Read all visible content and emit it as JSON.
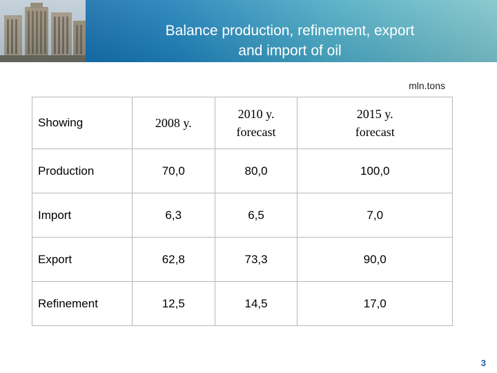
{
  "slide": {
    "title_line1": "Balance production, refinement, export",
    "title_line2": "and import of oil",
    "unit": "mln.tons",
    "page_number": "3"
  },
  "colors": {
    "header_dark": "#0d5fa0",
    "header_light": "#7fc4c9",
    "title_text": "#ffffff",
    "page_number": "#1f5fa8",
    "table_border": "#b7b7b7"
  },
  "table": {
    "headers": [
      {
        "line1": "Showing",
        "line2": ""
      },
      {
        "line1": "2008 y.",
        "line2": ""
      },
      {
        "line1": "2010 y.",
        "line2": "forecast"
      },
      {
        "line1": "2015 y.",
        "line2": "forecast"
      }
    ],
    "rows": [
      {
        "label": "Production",
        "values": [
          "70,0",
          "80,0",
          "100,0"
        ]
      },
      {
        "label": "Import",
        "values": [
          "6,3",
          "6,5",
          "7,0"
        ]
      },
      {
        "label": "Export",
        "values": [
          "62,8",
          "73,3",
          "90,0"
        ]
      },
      {
        "label": "Refinement",
        "values": [
          "12,5",
          "14,5",
          "17,0"
        ]
      }
    ]
  }
}
